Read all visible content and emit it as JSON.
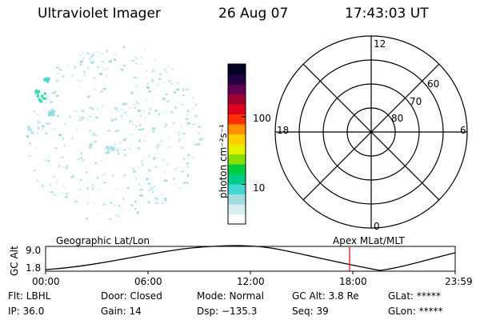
{
  "header": {
    "title": "Ultraviolet Imager",
    "date": "26 Aug 07",
    "time": "17:43:03 UT"
  },
  "colorbar": {
    "label": "photon cm⁻²s⁻¹",
    "ticks": [
      {
        "value": 10,
        "label": "10"
      },
      {
        "value": 100,
        "label": "100"
      }
    ],
    "range": [
      2.6,
      600
    ],
    "colors": [
      "#ffffff",
      "#d8eef0",
      "#a0dde0",
      "#40d8d0",
      "#00cc88",
      "#00d040",
      "#88e000",
      "#e6f000",
      "#ffd000",
      "#ff9000",
      "#ff3000",
      "#e00020",
      "#a00030",
      "#600050",
      "#200040",
      "#000020"
    ]
  },
  "polar_plot": {
    "top_label": "12",
    "bottom_label": "0",
    "left_label": "18",
    "right_label": "6",
    "lat_labels": [
      "60",
      "70",
      "80"
    ]
  },
  "altitude_chart": {
    "ylabel": "GC Alt",
    "left_label": "Geographic Lat/Lon",
    "right_label": "Apex MLat/MLT",
    "y_ticks": [
      "9.0",
      "1.8"
    ],
    "x_ticks": [
      "00:00",
      "06:00",
      "12:00",
      "18:00",
      "23:59"
    ],
    "marker_time": "17:43",
    "marker_color": "#dd0000"
  },
  "status": {
    "filter": "Flt: LBHL",
    "ip": "IP: 36.0",
    "door": "Door: Closed",
    "gain": "Gain: 14",
    "mode": "Mode: Normal",
    "dsp": "Dsp: −135.3",
    "gc_alt": "GC Alt: 3.8 Re",
    "seq": "Seq: 39",
    "glat": "GLat: *****",
    "glon": "GLon: *****"
  }
}
